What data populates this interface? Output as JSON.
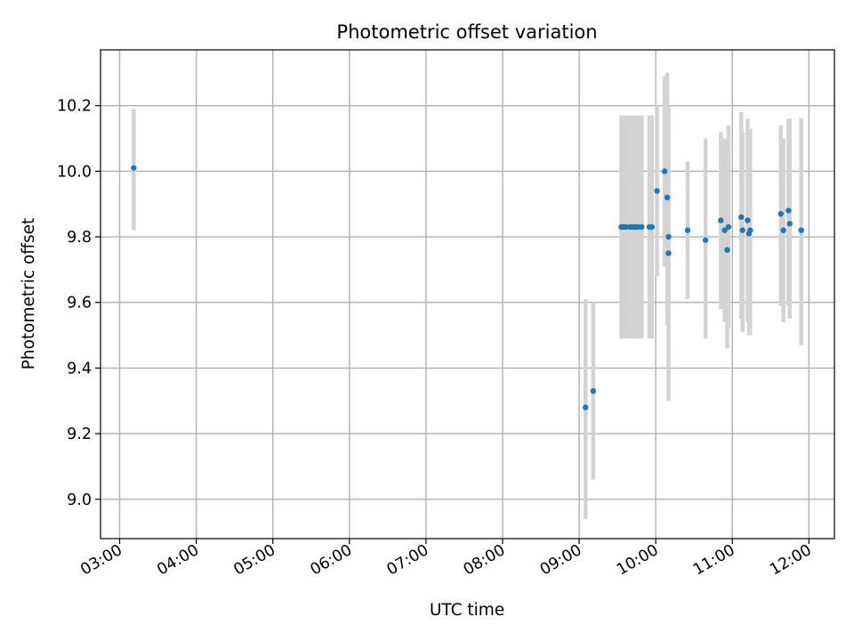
{
  "chart_data": {
    "type": "scatter",
    "title": "Photometric offset variation",
    "xlabel": "UTC time",
    "ylabel": "Photometric offset",
    "xlim": [
      "02:45",
      "12:20"
    ],
    "ylim": [
      8.88,
      10.37
    ],
    "grid": true,
    "x_ticks": [
      "03:00",
      "04:00",
      "05:00",
      "06:00",
      "07:00",
      "08:00",
      "09:00",
      "10:00",
      "11:00",
      "12:00"
    ],
    "y_ticks": [
      "9.0",
      "9.2",
      "9.4",
      "9.6",
      "9.8",
      "10.0",
      "10.2"
    ],
    "point_color": "#1f77b4",
    "errorbar_color": "#d3d3d3",
    "points": [
      {
        "time": "03:11",
        "y": 10.01,
        "ylow": 9.82,
        "yhigh": 10.19
      },
      {
        "time": "09:05",
        "y": 9.28,
        "ylow": 8.94,
        "yhigh": 9.61
      },
      {
        "time": "09:11",
        "y": 9.33,
        "ylow": 9.06,
        "yhigh": 9.6
      },
      {
        "time": "09:33",
        "y": 9.83,
        "ylow": 9.49,
        "yhigh": 10.17
      },
      {
        "time": "09:35",
        "y": 9.83,
        "ylow": 9.49,
        "yhigh": 10.17
      },
      {
        "time": "09:37",
        "y": 9.83,
        "ylow": 9.49,
        "yhigh": 10.17
      },
      {
        "time": "09:40",
        "y": 9.83,
        "ylow": 9.49,
        "yhigh": 10.17
      },
      {
        "time": "09:42",
        "y": 9.83,
        "ylow": 9.49,
        "yhigh": 10.17
      },
      {
        "time": "09:44",
        "y": 9.83,
        "ylow": 9.49,
        "yhigh": 10.17
      },
      {
        "time": "09:46",
        "y": 9.83,
        "ylow": 9.49,
        "yhigh": 10.17
      },
      {
        "time": "09:49",
        "y": 9.83,
        "ylow": 9.49,
        "yhigh": 10.17
      },
      {
        "time": "09:55",
        "y": 9.83,
        "ylow": 9.49,
        "yhigh": 10.17
      },
      {
        "time": "09:57",
        "y": 9.83,
        "ylow": 9.49,
        "yhigh": 10.17
      },
      {
        "time": "10:01",
        "y": 9.94,
        "ylow": 9.68,
        "yhigh": 10.2
      },
      {
        "time": "10:07",
        "y": 10.0,
        "ylow": 9.71,
        "yhigh": 10.29
      },
      {
        "time": "10:09",
        "y": 9.92,
        "ylow": 9.53,
        "yhigh": 10.3
      },
      {
        "time": "10:10",
        "y": 9.8,
        "ylow": 9.49,
        "yhigh": 10.11
      },
      {
        "time": "10:10",
        "y": 9.75,
        "ylow": 9.3,
        "yhigh": 10.2
      },
      {
        "time": "10:25",
        "y": 9.82,
        "ylow": 9.61,
        "yhigh": 10.03
      },
      {
        "time": "10:39",
        "y": 9.79,
        "ylow": 9.49,
        "yhigh": 10.1
      },
      {
        "time": "10:51",
        "y": 9.85,
        "ylow": 9.58,
        "yhigh": 10.12
      },
      {
        "time": "10:54",
        "y": 9.82,
        "ylow": 9.54,
        "yhigh": 10.1
      },
      {
        "time": "10:56",
        "y": 9.76,
        "ylow": 9.46,
        "yhigh": 10.06
      },
      {
        "time": "10:57",
        "y": 9.83,
        "ylow": 9.52,
        "yhigh": 10.14
      },
      {
        "time": "11:07",
        "y": 9.86,
        "ylow": 9.55,
        "yhigh": 10.18
      },
      {
        "time": "11:08",
        "y": 9.82,
        "ylow": 9.51,
        "yhigh": 10.12
      },
      {
        "time": "11:12",
        "y": 9.85,
        "ylow": 9.54,
        "yhigh": 10.16
      },
      {
        "time": "11:13",
        "y": 9.81,
        "ylow": 9.5,
        "yhigh": 10.12
      },
      {
        "time": "11:14",
        "y": 9.82,
        "ylow": 9.5,
        "yhigh": 10.13
      },
      {
        "time": "11:38",
        "y": 9.87,
        "ylow": 9.59,
        "yhigh": 10.14
      },
      {
        "time": "11:40",
        "y": 9.82,
        "ylow": 9.54,
        "yhigh": 10.1
      },
      {
        "time": "11:44",
        "y": 9.88,
        "ylow": 9.59,
        "yhigh": 10.16
      },
      {
        "time": "11:45",
        "y": 9.84,
        "ylow": 9.55,
        "yhigh": 10.16
      },
      {
        "time": "11:54",
        "y": 9.82,
        "ylow": 9.47,
        "yhigh": 10.16
      }
    ]
  }
}
